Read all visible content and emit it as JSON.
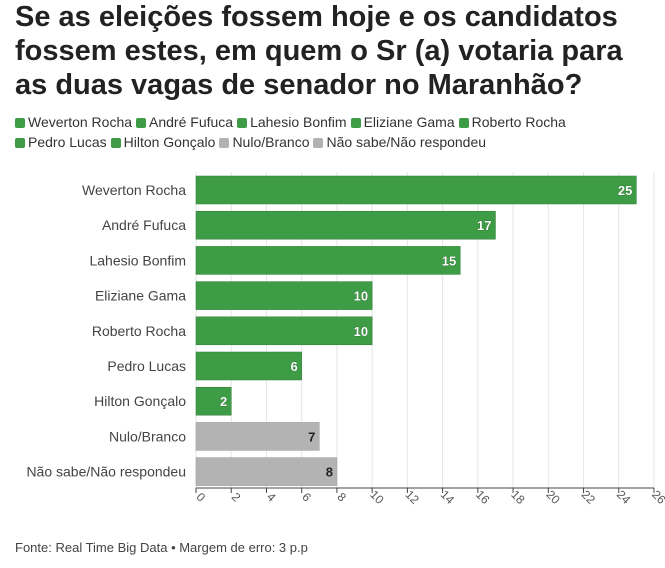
{
  "title": "Se as eleições fossem hoje e os candidatos fossem estes, em quem o Sr (a) votaria para as duas vagas de senador no Maranhão?",
  "source": "Fonte: Real Time Big Data • Margem de erro: 3 p.p",
  "colors": {
    "candidate": "#3f9c46",
    "other": "#b3b3b3",
    "candidate_border": "#2f7d35",
    "other_border": "#9a9a9a"
  },
  "chart_data": {
    "type": "bar",
    "orientation": "horizontal",
    "title": "Se as eleições fossem hoje e os candidatos fossem estes, em quem o Sr (a) votaria para as duas vagas de senador no Maranhão?",
    "categories": [
      "Weverton Rocha",
      "André Fufuca",
      "Lahesio Bonfim",
      "Eliziane Gama",
      "Roberto Rocha",
      "Pedro Lucas",
      "Hilton Gonçalo",
      "Nulo/Branco",
      "Não sabe/Não respondeu"
    ],
    "values": [
      25,
      17,
      15,
      10,
      10,
      6,
      2,
      7,
      8
    ],
    "groups": [
      "candidate",
      "candidate",
      "candidate",
      "candidate",
      "candidate",
      "candidate",
      "candidate",
      "other",
      "other"
    ],
    "legend": [
      "Weverton Rocha",
      "André Fufuca",
      "Lahesio Bonfim",
      "Eliziane Gama",
      "Roberto Rocha",
      "Pedro Lucas",
      "Hilton Gonçalo",
      "Nulo/Branco",
      "Não sabe/Não respondeu"
    ],
    "xticks": [
      "0",
      "2",
      "4",
      "6",
      "8",
      "10",
      "12",
      "14",
      "16",
      "18",
      "20",
      "22",
      "24",
      "26"
    ],
    "xlim": [
      0,
      26
    ],
    "xlabel": "",
    "ylabel": ""
  }
}
